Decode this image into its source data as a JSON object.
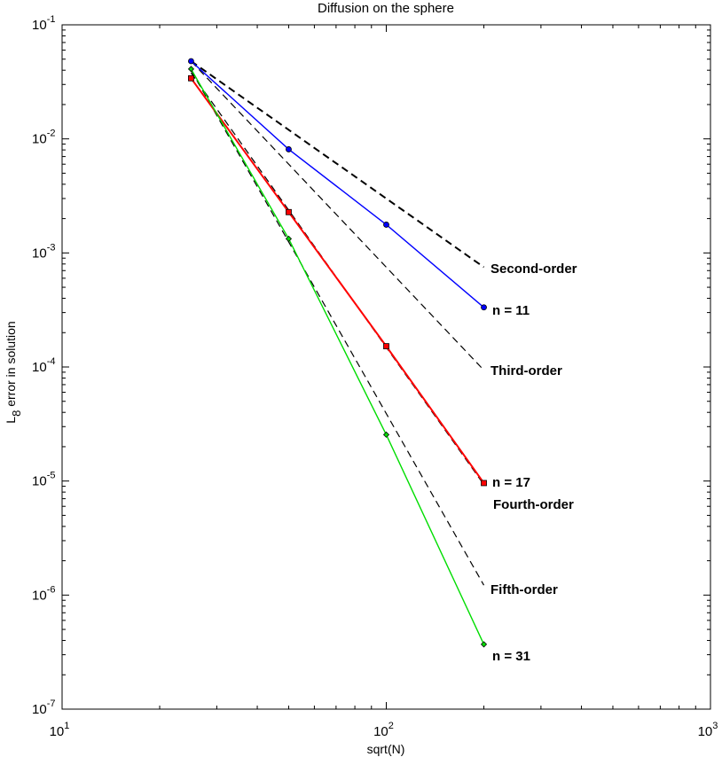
{
  "chart_data": {
    "type": "line",
    "title": "Diffusion on the sphere",
    "xlabel": "sqrt(N)",
    "ylabel": "L",
    "ylabel_sub": "8",
    "ylabel_rest": " error in solution",
    "xscale": "log",
    "yscale": "log",
    "xlim": [
      10,
      1000
    ],
    "ylim": [
      1e-07,
      0.1
    ],
    "grid": false,
    "x_ticks": [
      {
        "base": "10",
        "exp": "1",
        "value": 10
      },
      {
        "base": "10",
        "exp": "2",
        "value": 100
      },
      {
        "base": "10",
        "exp": "3",
        "value": 1000
      }
    ],
    "y_ticks": [
      {
        "base": "10",
        "exp": "-1",
        "value": 0.1
      },
      {
        "base": "10",
        "exp": "-2",
        "value": 0.01
      },
      {
        "base": "10",
        "exp": "-3",
        "value": 0.001
      },
      {
        "base": "10",
        "exp": "-4",
        "value": 0.0001
      },
      {
        "base": "10",
        "exp": "-5",
        "value": 1e-05
      },
      {
        "base": "10",
        "exp": "-6",
        "value": 1e-06
      },
      {
        "base": "10",
        "exp": "-7",
        "value": 1e-07
      }
    ],
    "series": [
      {
        "name": "n = 11",
        "color": "#0000ff",
        "marker": "circle",
        "x": [
          25,
          50,
          100,
          200
        ],
        "y": [
          0.048,
          0.0081,
          0.00177,
          0.000333
        ]
      },
      {
        "name": "n = 17",
        "color": "#ff0000",
        "marker": "square",
        "x": [
          25,
          50,
          100,
          200
        ],
        "y": [
          0.034,
          0.00228,
          0.000152,
          9.6e-06
        ]
      },
      {
        "name": "n = 31",
        "color": "#00dd00",
        "marker": "diamond",
        "x": [
          25,
          50,
          100,
          200
        ],
        "y": [
          0.041,
          0.00133,
          2.55e-05,
          3.7e-07
        ]
      }
    ],
    "reference_lines": [
      {
        "name": "Second-order",
        "x": [
          25,
          200
        ],
        "y": [
          0.048,
          0.00075
        ]
      },
      {
        "name": "Third-order",
        "x": [
          25,
          200
        ],
        "y": [
          0.048,
          9.38e-05
        ]
      },
      {
        "name": "Fourth-order",
        "x": [
          25,
          200
        ],
        "y": [
          0.038,
          9.3e-06
        ]
      },
      {
        "name": "Fifth-order",
        "x": [
          25,
          200
        ],
        "y": [
          0.04,
          1.22e-06
        ]
      }
    ]
  }
}
